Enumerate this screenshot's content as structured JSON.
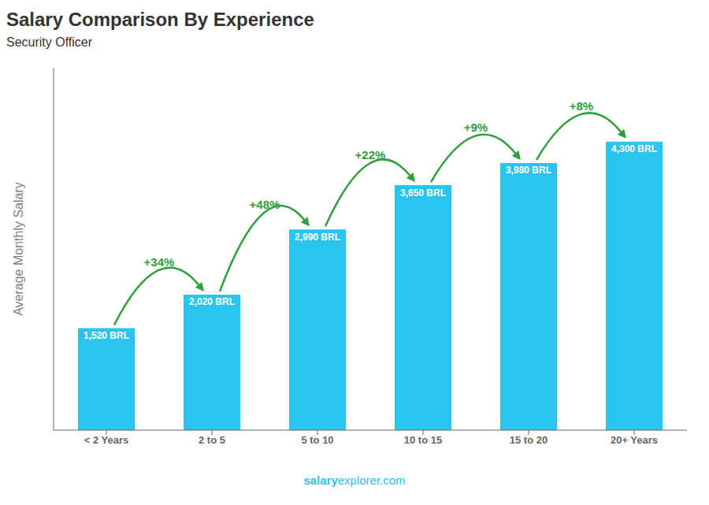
{
  "chart_data": {
    "type": "bar",
    "title": "Salary Comparison By Experience",
    "subtitle": "Security Officer",
    "categories": [
      "< 2 Years",
      "2 to 5",
      "5 to 10",
      "10 to 15",
      "15 to 20",
      "20+ Years"
    ],
    "values": [
      1520,
      2020,
      2990,
      3650,
      3980,
      4300
    ],
    "value_labels": [
      "1,520 BRL",
      "2,020 BRL",
      "2,990 BRL",
      "3,650 BRL",
      "3,980 BRL",
      "4,300 BRL"
    ],
    "data_labels": true,
    "annotations": [
      "+34%",
      "+48%",
      "+22%",
      "+9%",
      "+8%"
    ],
    "ylabel": "Average Monthly Salary",
    "watermark": [
      "salary",
      "explorer.com"
    ],
    "color": "#29c4ef",
    "ylim": [
      0,
      5400
    ],
    "tick_labels": "x",
    "grid": false
  }
}
